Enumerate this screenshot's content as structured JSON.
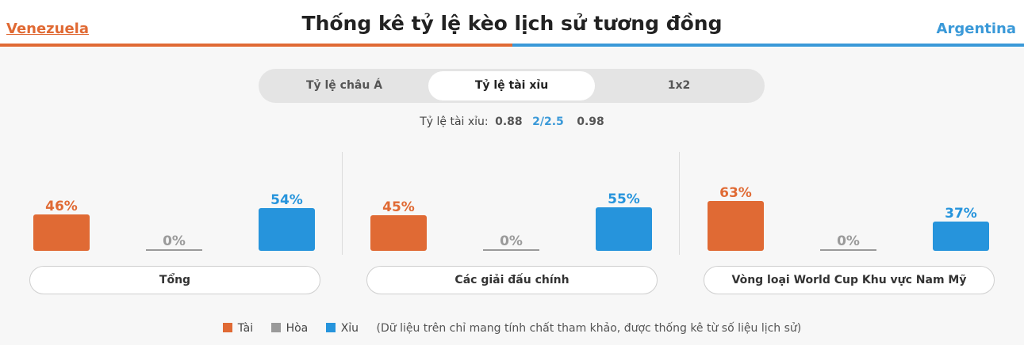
{
  "header": {
    "title": "Thống kê tỷ lệ kèo lịch sử tương đồng",
    "home_team": "Venezuela",
    "away_team": "Argentina"
  },
  "tabs": [
    {
      "label": "Tỷ lệ châu Á",
      "active": false
    },
    {
      "label": "Tỷ lệ tài xỉu",
      "active": true
    },
    {
      "label": "1x2",
      "active": false
    }
  ],
  "odds": {
    "label": "Tỷ lệ tài xỉu:",
    "over": "0.88",
    "line": "2/2.5",
    "under": "0.98"
  },
  "colors": {
    "over": "#e06a34",
    "draw": "#9a9a9a",
    "under": "#2694dc"
  },
  "chart_data": [
    {
      "type": "bar",
      "title": "Tổng",
      "categories": [
        "Tài",
        "Hòa",
        "Xỉu"
      ],
      "values": [
        46,
        0,
        54
      ],
      "labels": [
        "46%",
        "0%",
        "54%"
      ],
      "ylim": [
        0,
        100
      ]
    },
    {
      "type": "bar",
      "title": "Các giải đấu chính",
      "categories": [
        "Tài",
        "Hòa",
        "Xỉu"
      ],
      "values": [
        45,
        0,
        55
      ],
      "labels": [
        "45%",
        "0%",
        "55%"
      ],
      "ylim": [
        0,
        100
      ]
    },
    {
      "type": "bar",
      "title": "Vòng loại World Cup Khu vực Nam Mỹ",
      "categories": [
        "Tài",
        "Hòa",
        "Xỉu"
      ],
      "values": [
        63,
        0,
        37
      ],
      "labels": [
        "63%",
        "0%",
        "37%"
      ],
      "ylim": [
        0,
        100
      ]
    }
  ],
  "legend": {
    "items": [
      "Tài",
      "Hòa",
      "Xỉu"
    ],
    "note": "(Dữ liệu trên chỉ mang tính chất tham khảo, được thống kê từ số liệu lịch sử)"
  }
}
